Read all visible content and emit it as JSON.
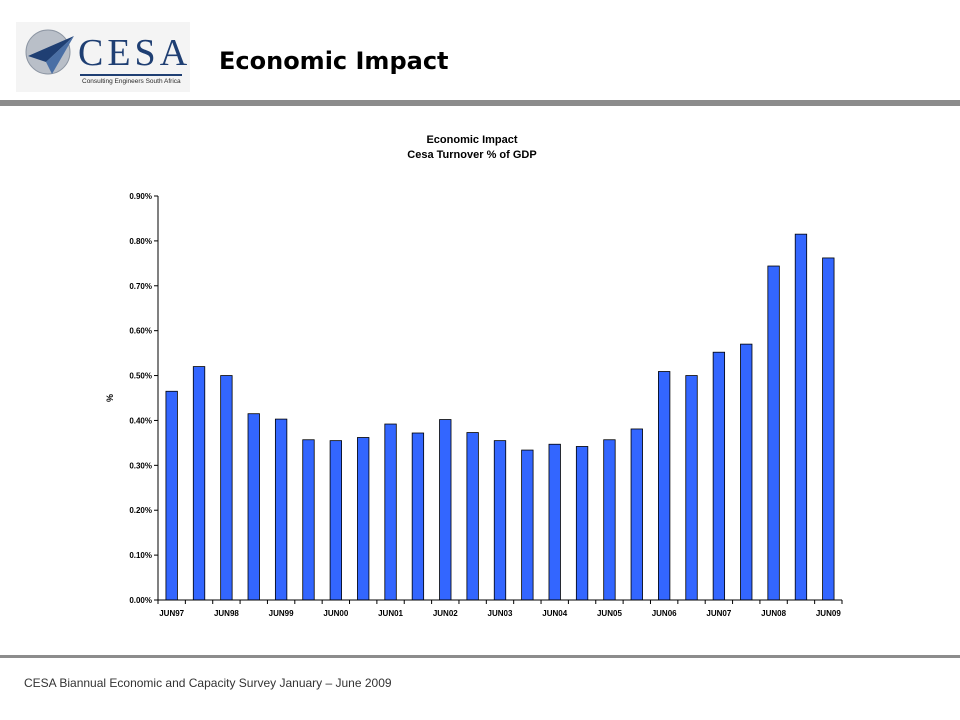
{
  "header": {
    "logo_text": "CESA",
    "logo_tagline": "Consulting Engineers South Africa",
    "slide_title": "Economic Impact"
  },
  "footer": {
    "text": "CESA Biannual Economic and Capacity Survey January – June 2009"
  },
  "colors": {
    "bar_fill": "#3366ff",
    "bar_stroke": "#000000",
    "rule": "#8c8c8c",
    "logo_blue": "#1f3f73"
  },
  "chart_data": {
    "type": "bar",
    "title": "Economic Impact",
    "subtitle": "Cesa Turnover % of GDP",
    "xlabel": "",
    "ylabel": "%",
    "ylim": [
      0,
      0.9
    ],
    "yticks": [
      "0.00%",
      "0.10%",
      "0.20%",
      "0.30%",
      "0.40%",
      "0.50%",
      "0.60%",
      "0.70%",
      "0.80%",
      "0.90%"
    ],
    "xtick_labels": [
      "JUN97",
      "JUN98",
      "JUN99",
      "JUN00",
      "JUN01",
      "JUN02",
      "JUN03",
      "JUN04",
      "JUN05",
      "JUN06",
      "JUN07",
      "JUN08",
      "JUN09"
    ],
    "grid": false,
    "values": [
      0.465,
      0.52,
      0.5,
      0.415,
      0.403,
      0.357,
      0.355,
      0.362,
      0.392,
      0.372,
      0.402,
      0.373,
      0.355,
      0.334,
      0.347,
      0.342,
      0.357,
      0.381,
      0.509,
      0.5,
      0.552,
      0.57,
      0.744,
      0.815,
      0.762
    ]
  }
}
